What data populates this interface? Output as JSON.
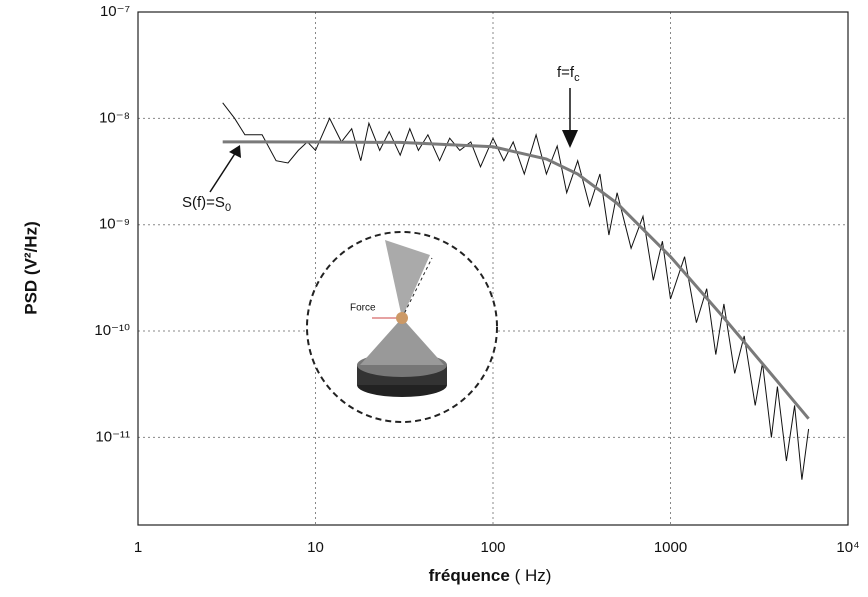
{
  "chart_data": {
    "type": "line",
    "xlabel": "fréquence",
    "xlabel_unit": "( Hz)",
    "ylabel": "PSD (V²/Hz)",
    "xscale": "log",
    "yscale": "log",
    "grid": true,
    "xlim": [
      1,
      10000
    ],
    "xticks": [
      1,
      10,
      100,
      1000,
      {
        "value": 10000,
        "label": "10⁴"
      }
    ],
    "ylim": [
      1.5e-12,
      1e-07
    ],
    "yticks": [
      {
        "value": 1e-07,
        "label": "10⁻⁷"
      },
      {
        "value": 1e-08,
        "label": "10⁻⁸"
      },
      {
        "value": 1e-09,
        "label": "10⁻⁹"
      },
      {
        "value": 1e-10,
        "label": "10⁻¹⁰"
      },
      {
        "value": 1e-11,
        "label": "10⁻¹¹"
      }
    ],
    "series": [
      {
        "color": "#111111",
        "width": 1,
        "x": [
          3,
          3.5,
          4,
          5,
          6,
          7,
          8,
          9,
          10,
          12,
          14,
          16,
          18,
          20,
          23,
          26,
          30,
          34,
          38,
          43,
          50,
          57,
          65,
          75,
          85,
          100,
          115,
          130,
          150,
          175,
          200,
          230,
          260,
          300,
          350,
          400,
          450,
          500,
          600,
          700,
          800,
          900,
          1000,
          1200,
          1400,
          1600,
          1800,
          2000,
          2300,
          2600,
          3000,
          3300,
          3700,
          4000,
          4500,
          5000,
          5500,
          6000
        ],
        "values": [
          1.4e-08,
          1e-08,
          7e-09,
          7e-09,
          4e-09,
          3.8e-09,
          5e-09,
          6e-09,
          5e-09,
          1e-08,
          6e-09,
          8e-09,
          4e-09,
          9e-09,
          5e-09,
          7.5e-09,
          4.5e-09,
          8e-09,
          5e-09,
          7e-09,
          4e-09,
          6.5e-09,
          5e-09,
          6e-09,
          3.5e-09,
          6.5e-09,
          4e-09,
          6e-09,
          3e-09,
          7e-09,
          3e-09,
          5.5e-09,
          2e-09,
          4e-09,
          1.5e-09,
          3e-09,
          8e-10,
          2e-09,
          6e-10,
          1.2e-09,
          3e-10,
          7e-10,
          2e-10,
          5e-10,
          1.2e-10,
          2.5e-10,
          6e-11,
          1.8e-10,
          4e-11,
          9e-11,
          2e-11,
          5e-11,
          1e-11,
          3e-11,
          6e-12,
          2e-11,
          4e-12,
          1.2e-11
        ]
      },
      {
        "color": "#7a7a7a",
        "width": 3,
        "x": [
          3,
          10,
          30,
          100,
          200,
          300,
          500,
          1000,
          2000,
          4000,
          6000
        ],
        "values": [
          6e-09,
          5.99e-09,
          5.94e-09,
          5.4e-09,
          4.15e-09,
          3e-09,
          1.59e-09,
          5e-10,
          1.33e-10,
          3.36e-11,
          1.5e-11
        ]
      }
    ],
    "annotations": [
      {
        "text": "f=f",
        "sub": "c"
      },
      {
        "text": "S(f)=S",
        "sub": "0"
      }
    ],
    "inset_label": "Force"
  }
}
